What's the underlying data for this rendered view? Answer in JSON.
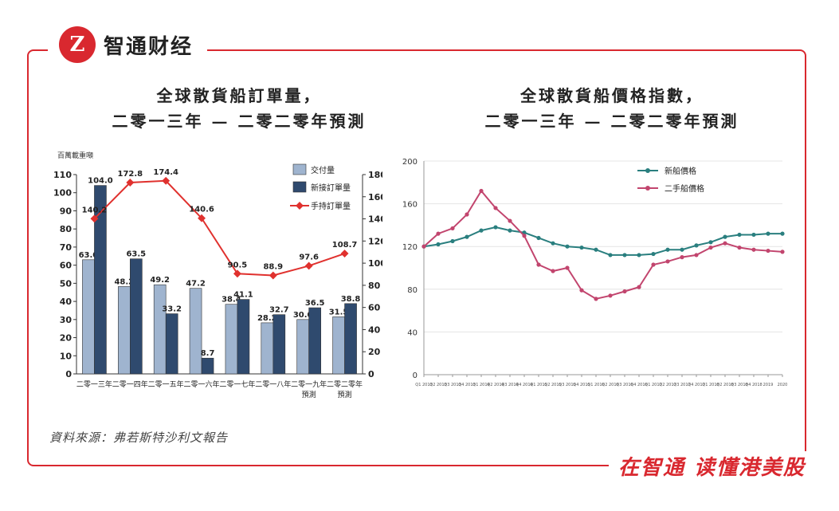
{
  "brand": {
    "logo_text": "智通财经",
    "slogan": "在智通 读懂港美股",
    "accent_color": "#d9282f",
    "icon": "zhitong-logo-icon"
  },
  "source_note": "資料來源：弗若斯特沙利文報告",
  "chart_data": [
    {
      "type": "bar",
      "title_line1": "全球散貨船訂單量，",
      "title_line2": "二零一三年 — 二零二零年預測",
      "ylabel": "百萬載重噸",
      "categories": [
        "二零一三年",
        "二零一四年",
        "二零一五年",
        "二零一六年",
        "二零一七年",
        "二零一八年",
        "二零一九年預測",
        "二零二零年預測"
      ],
      "category_lines": [
        [
          "二零一三年"
        ],
        [
          "二零一四年"
        ],
        [
          "二零一五年"
        ],
        [
          "二零一六年"
        ],
        [
          "二零一七年"
        ],
        [
          "二零一八年"
        ],
        [
          "二零一九年",
          "預測"
        ],
        [
          "二零二零年",
          "預測"
        ]
      ],
      "ylim_left": [
        0,
        110
      ],
      "yticks_left": [
        "0",
        "10",
        "20",
        "30",
        "40",
        "50",
        "60",
        "70",
        "80",
        "90",
        "100",
        "110"
      ],
      "ylim_right": [
        0,
        180
      ],
      "yticks_right": [
        "0",
        "20",
        "40",
        "60",
        "80",
        "100",
        "120",
        "140",
        "160",
        "180"
      ],
      "legend": [
        "交付量",
        "新接訂單量",
        "手持訂單量"
      ],
      "legend_position": "top-right",
      "series": [
        {
          "name": "交付量",
          "kind": "bar",
          "axis": "left",
          "color": "#9fb4cf",
          "values": [
            63.0,
            48.2,
            49.2,
            47.2,
            38.4,
            28.2,
            30.0,
            31.5
          ],
          "labels": [
            "63.0",
            "48.2",
            "49.2",
            "47.2",
            "38.4",
            "28.2",
            "30.0",
            "31.5"
          ]
        },
        {
          "name": "新接訂單量",
          "kind": "bar",
          "axis": "left",
          "color": "#2f4a6e",
          "values": [
            104.0,
            63.5,
            33.2,
            8.7,
            41.1,
            32.7,
            36.5,
            38.8
          ],
          "labels": [
            "104.0",
            "63.5",
            "33.2",
            "8.7",
            "41.1",
            "32.7",
            "36.5",
            "38.8"
          ]
        },
        {
          "name": "手持訂單量",
          "kind": "line",
          "axis": "right",
          "color": "#e0312e",
          "values": [
            140.2,
            172.8,
            174.4,
            140.6,
            90.5,
            88.9,
            97.6,
            108.7
          ],
          "labels": [
            "140.2",
            "172.8",
            "174.4",
            "140.6",
            "90.5",
            "88.9",
            "97.6",
            "108.7"
          ]
        }
      ]
    },
    {
      "type": "line",
      "title_line1": "全球散貨船價格指數，",
      "title_line2": "二零一三年 — 二零二零年預測",
      "ylim": [
        0,
        200
      ],
      "yticks": [
        "0",
        "40",
        "80",
        "120",
        "160",
        "200"
      ],
      "grid": true,
      "legend_position": "top-left",
      "x": [
        "Q1 2013",
        "Q2 2013",
        "Q3 2013",
        "Q4 2013",
        "Q1 2014",
        "Q2 2014",
        "Q3 2014",
        "Q4 2014",
        "Q1 2015",
        "Q2 2015",
        "Q3 2015",
        "Q4 2015",
        "Q1 2016",
        "Q2 2016",
        "Q3 2016",
        "Q4 2016",
        "Q1 2017",
        "Q2 2017",
        "Q3 2017",
        "Q4 2017",
        "Q1 2018",
        "Q2 2018",
        "Q3 2018",
        "Q4 2018",
        "2019",
        "2020"
      ],
      "series": [
        {
          "name": "新船價格",
          "color": "#2a7f7f",
          "values": [
            120,
            122,
            125,
            129,
            135,
            138,
            135,
            133,
            128,
            123,
            120,
            119,
            117,
            112,
            112,
            112,
            113,
            117,
            117,
            121,
            124,
            129,
            131,
            131,
            132,
            132
          ]
        },
        {
          "name": "二手船價格",
          "color": "#c2456e",
          "values": [
            120,
            132,
            137,
            150,
            172,
            156,
            144,
            130,
            103,
            97,
            100,
            79,
            71,
            74,
            78,
            82,
            103,
            106,
            110,
            112,
            119,
            123,
            119,
            117,
            116,
            115
          ]
        }
      ]
    }
  ]
}
